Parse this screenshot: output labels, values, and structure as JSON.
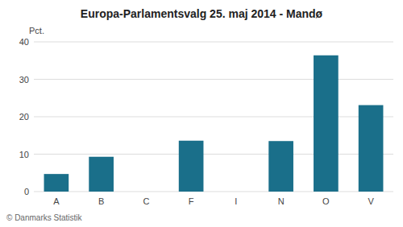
{
  "chart_data": {
    "type": "bar",
    "title": "Europa-Parlamentsvalg 25. maj 2014 - Mandø",
    "categories": [
      "A",
      "B",
      "C",
      "F",
      "I",
      "N",
      "O",
      "V"
    ],
    "values": [
      4.7,
      9.3,
      0.0,
      13.6,
      0.0,
      13.5,
      36.4,
      23.1
    ],
    "color": "#1a6f8a",
    "ylabel": "Pct.",
    "ylim": [
      0,
      40
    ],
    "yticks": [
      0,
      10,
      20,
      30,
      40
    ],
    "grid": true,
    "annotations": [
      "© Danmarks Statistik"
    ]
  }
}
